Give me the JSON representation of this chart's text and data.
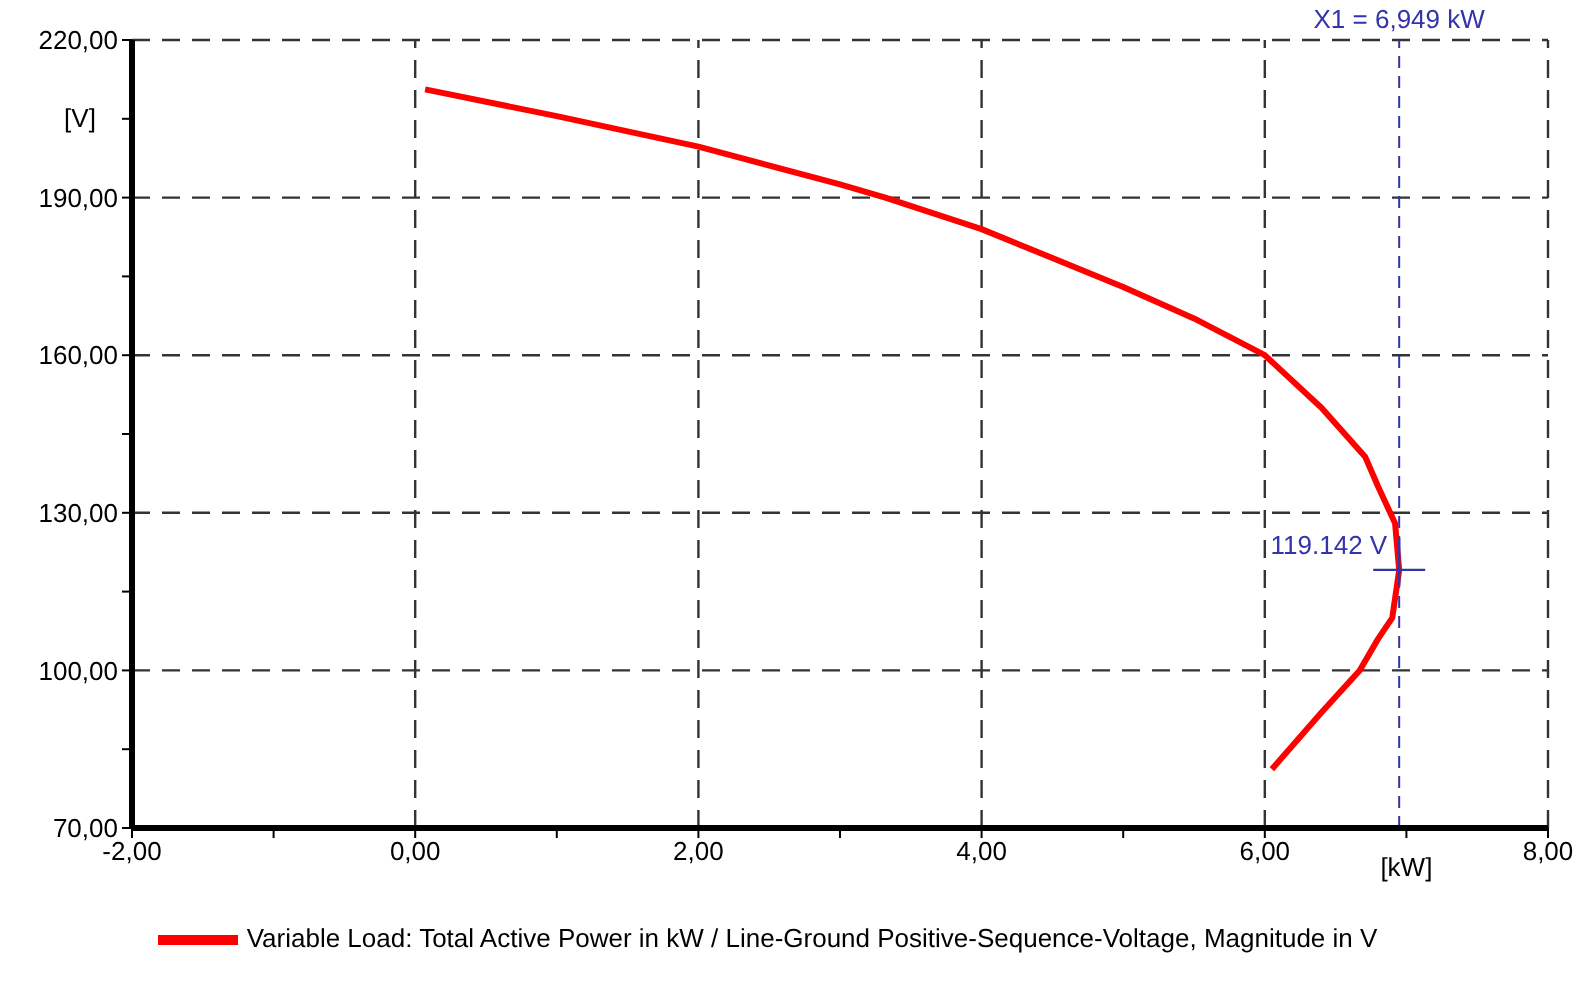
{
  "chart_data": {
    "type": "line",
    "xlabel": "[kW]",
    "ylabel": "[V]",
    "x": [
      0.07,
      1.0,
      2.0,
      3.0,
      3.32,
      4.0,
      5.0,
      5.5,
      6.0,
      6.4,
      6.71,
      6.8,
      6.92,
      6.949,
      6.9,
      6.8,
      6.67,
      6.4,
      6.05
    ],
    "series": [
      {
        "name": "Variable Load: Total Active Power in kW / Line-Ground Positive-Sequence-Voltage, Magnitude in V",
        "color": "#ff0000",
        "values": [
          210.6,
          205.5,
          199.7,
          192.5,
          190,
          184,
          173,
          167,
          160,
          150,
          140.6,
          135,
          128,
          119.1,
          110,
          106,
          100,
          92,
          81.2
        ]
      }
    ],
    "xlim": [
      -2,
      8
    ],
    "xticks": [
      {
        "value": -2,
        "label": "-2,00"
      },
      {
        "value": -1,
        "label": null
      },
      {
        "value": 0,
        "label": "0,00"
      },
      {
        "value": 1,
        "label": null
      },
      {
        "value": 2,
        "label": "2,00"
      },
      {
        "value": 3,
        "label": null
      },
      {
        "value": 4,
        "label": "4,00"
      },
      {
        "value": 5,
        "label": null
      },
      {
        "value": 6,
        "label": "6,00"
      },
      {
        "value": 7,
        "label": null
      },
      {
        "value": 8,
        "label": "8,00"
      }
    ],
    "ylim": [
      70,
      220
    ],
    "yticks": [
      {
        "value": 70,
        "label": "70,00"
      },
      {
        "value": 85,
        "label": null
      },
      {
        "value": 100,
        "label": "100,00"
      },
      {
        "value": 115,
        "label": null
      },
      {
        "value": 130,
        "label": "130,00"
      },
      {
        "value": 145,
        "label": null
      },
      {
        "value": 160,
        "label": "160,00"
      },
      {
        "value": 175,
        "label": null
      },
      {
        "value": 190,
        "label": "190,00"
      },
      {
        "value": 205,
        "label": null
      },
      {
        "value": 220,
        "label": "220,00"
      }
    ],
    "grid": true,
    "legend": "bottom",
    "marker": "none",
    "line_style": "solid",
    "ref_lines": [
      {
        "axis": "x",
        "value": 6.949,
        "label": "X1 =  6,949 kW",
        "color": "#3333aa",
        "line_style": "dashed"
      }
    ],
    "annotations": [
      {
        "text": "119.142 V",
        "x": 6.949,
        "y": 119.142
      }
    ]
  }
}
